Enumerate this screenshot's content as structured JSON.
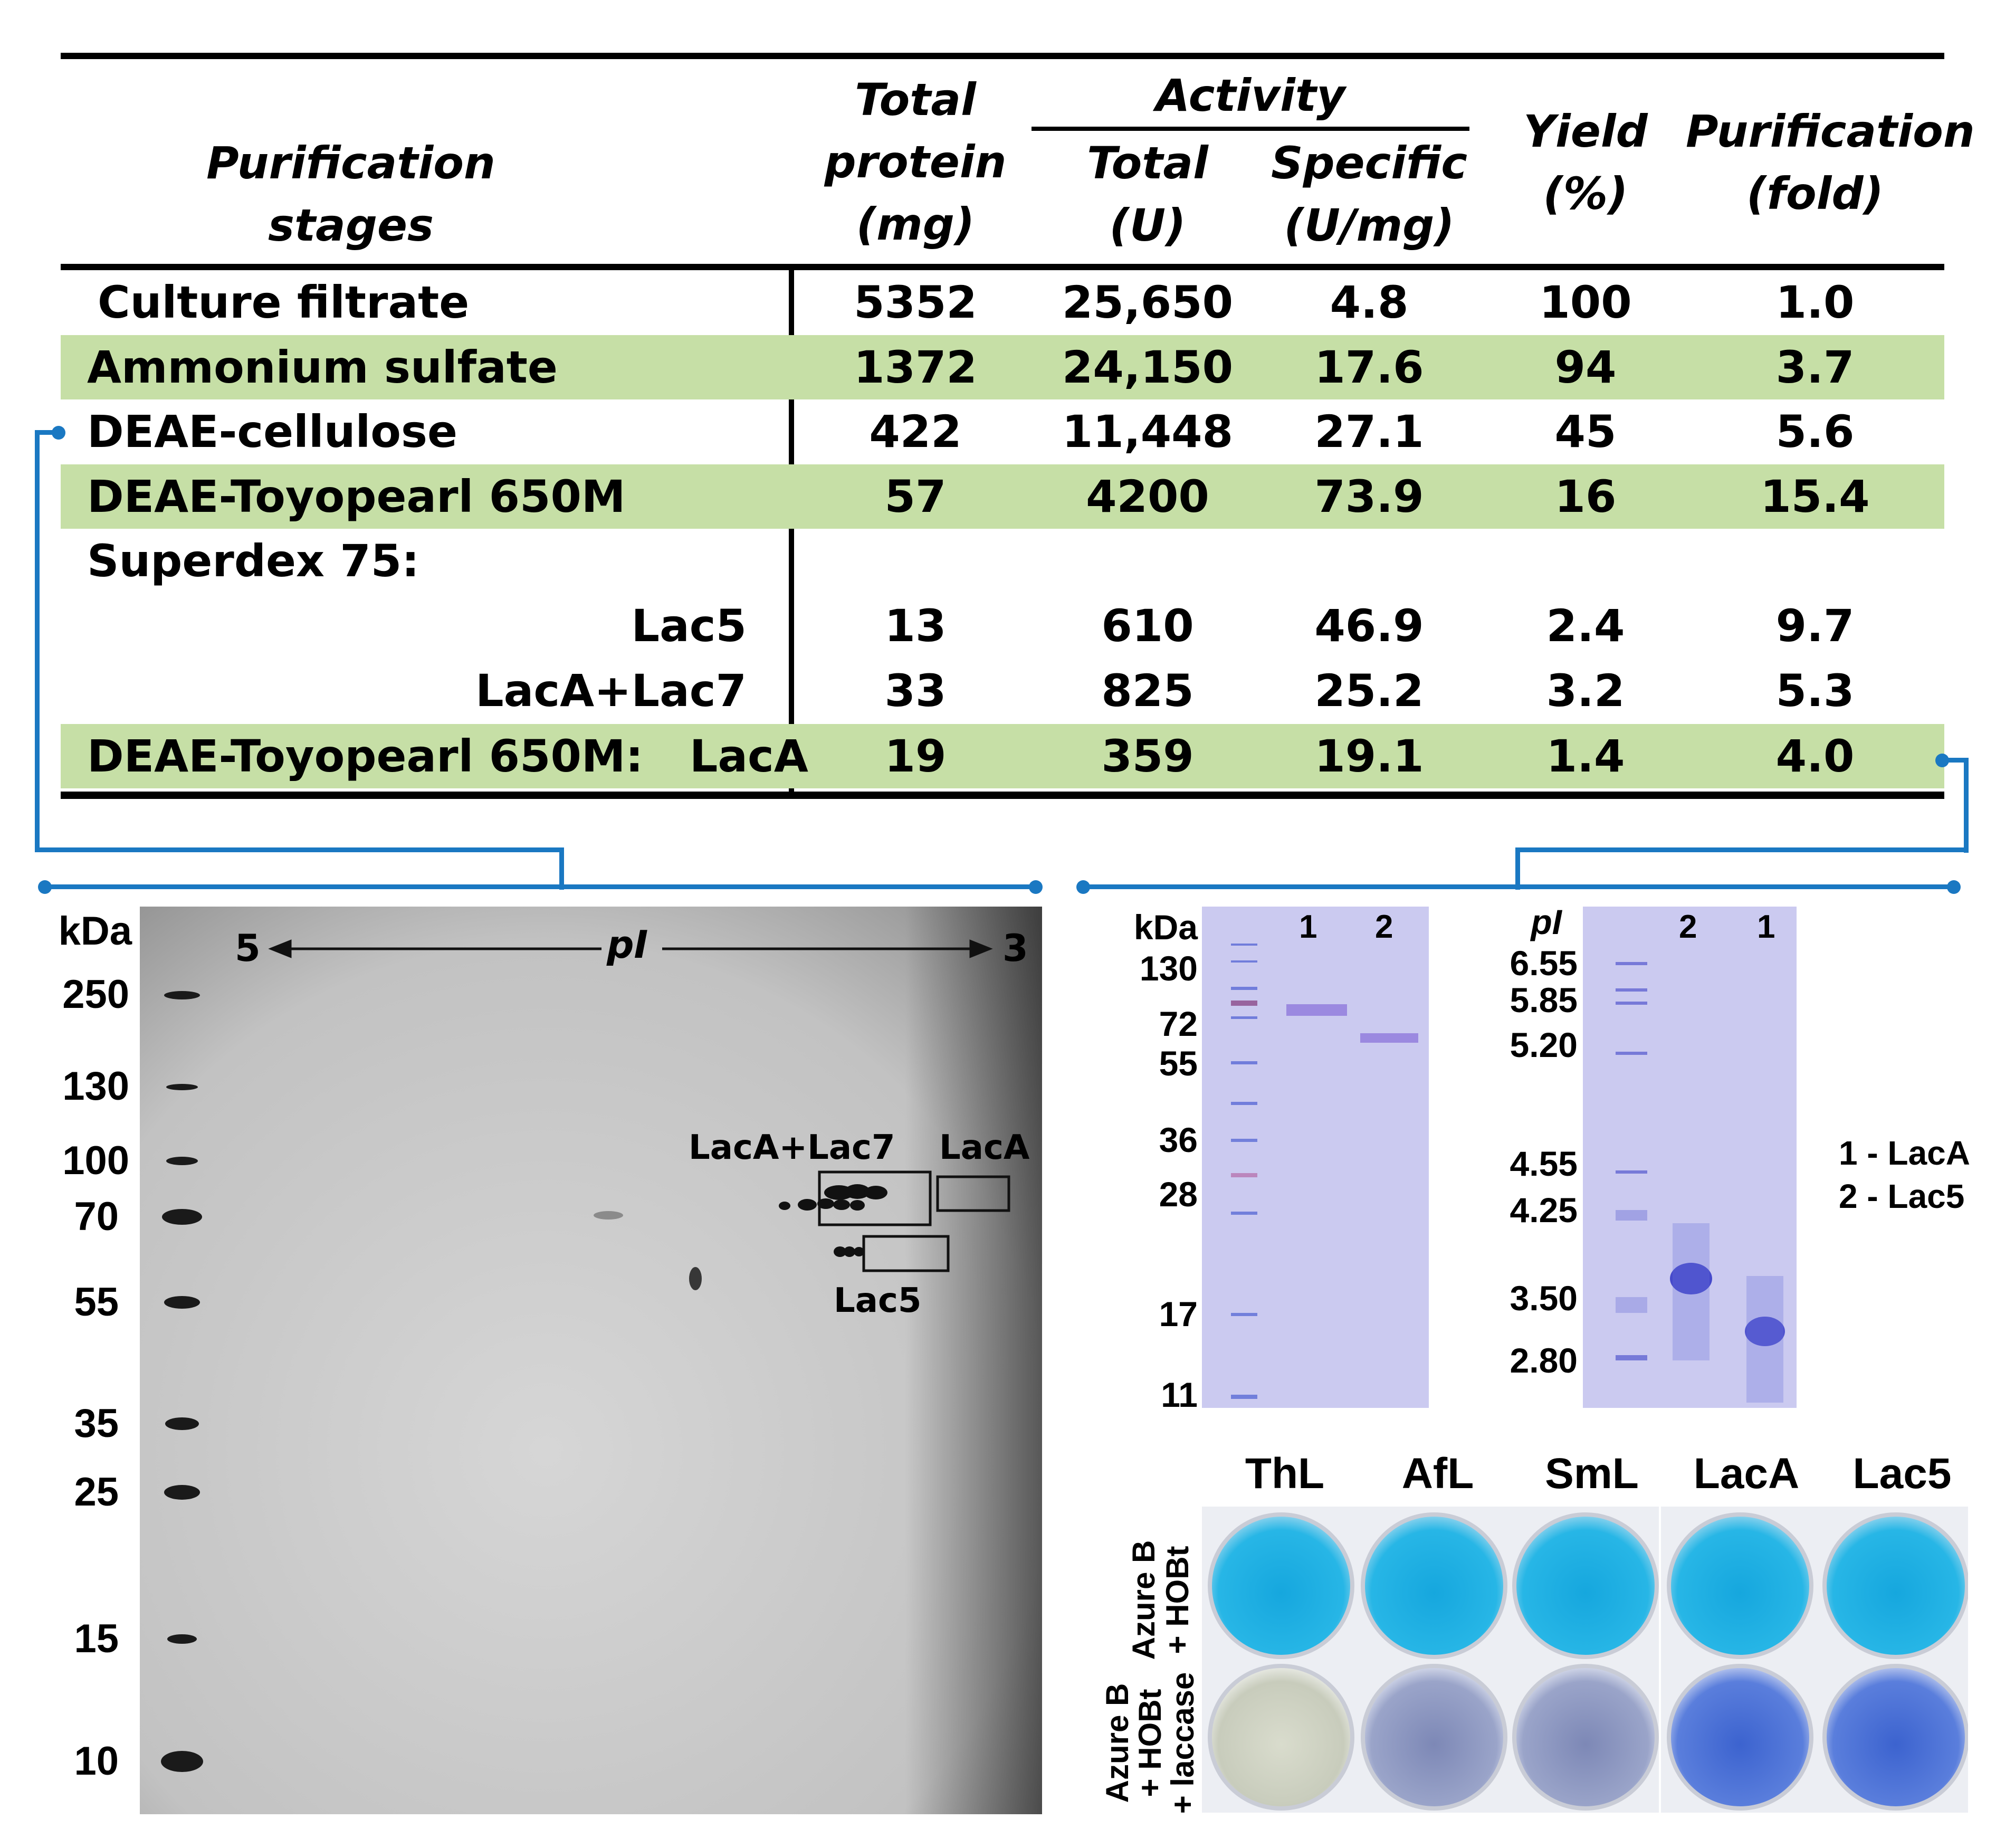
{
  "table": {
    "headers": {
      "stages": "Purification stages",
      "total_protein": [
        "Total",
        "protein",
        "(mg)"
      ],
      "activity": "Activity",
      "activity_total": [
        "Total",
        "(U)"
      ],
      "activity_specific": [
        "Specific",
        "(U/mg)"
      ],
      "yield": [
        "Yield",
        "(%)"
      ],
      "purification": [
        "Purification",
        "(fold)"
      ]
    },
    "rows": [
      {
        "stage": "Culture filtrate",
        "protein": "5352",
        "total": "25,650",
        "specific": "4.8",
        "yield": "100",
        "fold": "1.0"
      },
      {
        "stage": "Ammonium sulfate",
        "protein": "1372",
        "total": "24,150",
        "specific": "17.6",
        "yield": "94",
        "fold": "3.7"
      },
      {
        "stage": "DEAE-cellulose",
        "protein": "422",
        "total": "11,448",
        "specific": "27.1",
        "yield": "45",
        "fold": "5.6"
      },
      {
        "stage": "DEAE-Toyopearl 650M",
        "protein": "57",
        "total": "4200",
        "specific": "73.9",
        "yield": "16",
        "fold": "15.4"
      },
      {
        "stage": "Superdex 75:",
        "protein": "",
        "total": "",
        "specific": "",
        "yield": "",
        "fold": ""
      },
      {
        "stage": "Lac5",
        "protein": "13",
        "total": "610",
        "specific": "46.9",
        "yield": "2.4",
        "fold": "9.7"
      },
      {
        "stage": "LacA+Lac7",
        "protein": "33",
        "total": "825",
        "specific": "25.2",
        "yield": "3.2",
        "fold": "5.3"
      },
      {
        "stage": "DEAE-Toyopearl 650M:   LacA",
        "protein": "19",
        "total": "359",
        "specific": "19.1",
        "yield": "1.4",
        "fold": "4.0"
      }
    ]
  },
  "gel2d": {
    "kda_label": "kDa",
    "markers": [
      "250",
      "130",
      "100",
      "70",
      "55",
      "35",
      "25",
      "15",
      "10"
    ],
    "pi_left": "5",
    "pi_center": "pI",
    "pi_right": "3",
    "box_labels": {
      "laca_lac7": "LacA+Lac7",
      "laca": "LacA",
      "lac5": "Lac5"
    }
  },
  "sds_gel": {
    "kda_label": "kDa",
    "markers": [
      "130",
      "72",
      "55",
      "36",
      "28",
      "17",
      "11"
    ],
    "lanes": [
      "1",
      "2"
    ]
  },
  "ief_gel": {
    "pi_label": "pI",
    "markers": [
      "6.55",
      "5.85",
      "5.20",
      "4.55",
      "4.25",
      "3.50",
      "2.80"
    ],
    "lanes": [
      "2",
      "1"
    ],
    "legend": [
      "1 - LacA",
      "2 - Lac5"
    ]
  },
  "plate": {
    "columns": [
      "ThL",
      "AfL",
      "SmL",
      "LacA",
      "Lac5"
    ],
    "row_labels": [
      [
        "Azure B",
        "+ HOBt"
      ],
      [
        "Azure B",
        "+ HOBt",
        "+ laccase"
      ]
    ]
  },
  "colors": {
    "highlight_row": "#c6dfa6",
    "connector": "#1a78c2",
    "coomassie": "#c9c8ee",
    "azure": "#1eb2e0"
  }
}
